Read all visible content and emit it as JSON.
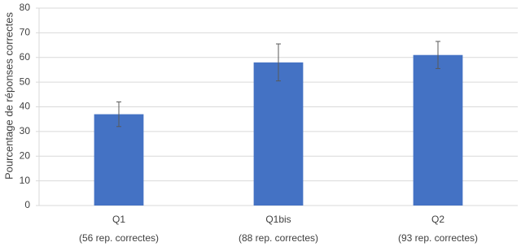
{
  "chart_data": {
    "type": "bar",
    "y_label": "Pourcentage de réponses correctes",
    "categories": [
      [
        "Q1",
        "(56 rep. correctes)"
      ],
      [
        "Q1bis",
        "(88 rep. correctes)"
      ],
      [
        "Q2",
        "(93 rep. correctes)"
      ]
    ],
    "values": [
      37,
      58,
      61
    ],
    "errors": [
      5,
      7.5,
      5.5
    ],
    "color": "#4472c4",
    "ylim": [
      0,
      80
    ],
    "yticks": [
      0,
      10,
      20,
      30,
      40,
      50,
      60,
      70,
      80
    ],
    "grid": true
  }
}
